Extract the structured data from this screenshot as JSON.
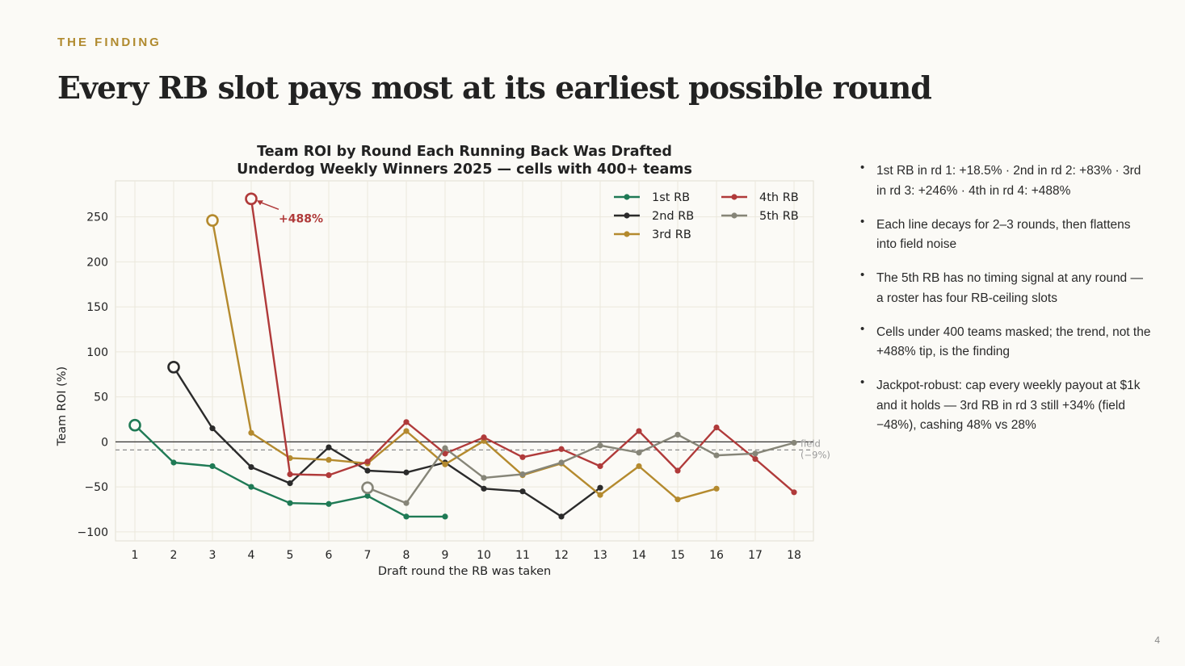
{
  "slide": {
    "eyebrow": "THE FINDING",
    "title": "Every RB slot pays most at its earliest possible round",
    "page_number": "4"
  },
  "notes": [
    "1st RB in rd 1: +18.5% · 2nd in rd 2: +83% · 3rd in rd 3: +246% · 4th in rd 4: +488%",
    "Each line decays for 2–3 rounds, then flattens into field noise",
    "The 5th RB has no timing signal at any round — a roster has four RB-ceiling slots",
    "Cells under 400 teams masked; the trend, not the +488% tip, is the finding",
    "Jackpot-robust: cap every weekly payout at $1k and it holds — 3rd RB in rd 3 still +34% (field −48%), cashing 48% vs 28%"
  ],
  "chart_data": {
    "type": "line",
    "title": "Team ROI by Round Each Running Back Was Drafted",
    "subtitle": "Underdog Weekly Winners 2025 — cells with 400+ teams",
    "xlabel": "Draft round the RB was taken",
    "ylabel": "Team ROI (%)",
    "x_ticks": [
      1,
      2,
      3,
      4,
      5,
      6,
      7,
      8,
      9,
      10,
      11,
      12,
      13,
      14,
      15,
      16,
      17,
      18
    ],
    "y_ticks": [
      250,
      200,
      150,
      100,
      50,
      0,
      -50,
      -100
    ],
    "y_tick_labels": [
      "250",
      "200",
      "150",
      "100",
      "50",
      "0",
      "−50",
      "−100"
    ],
    "xlim": [
      0.5,
      18.5
    ],
    "ylim": [
      -110,
      290
    ],
    "grid": true,
    "legend_position": "top-right",
    "zero_line": 0,
    "field_line": {
      "value": -9,
      "label": "field",
      "sublabel": "(−9%)",
      "color": "#8c8c8c"
    },
    "annotation": {
      "text": "+488%",
      "color": "#b03a3a"
    },
    "series": [
      {
        "name": "1st RB",
        "color": "#1f7a55",
        "x": [
          1,
          2,
          3,
          4,
          5,
          6,
          7,
          8,
          9
        ],
        "y": [
          18.5,
          -23,
          -27,
          -50,
          -68,
          -69,
          -60,
          -83,
          -83
        ]
      },
      {
        "name": "2nd RB",
        "color": "#2b2b2b",
        "x": [
          2,
          3,
          4,
          5,
          6,
          7,
          8,
          9,
          10,
          11,
          12,
          13
        ],
        "y": [
          83,
          15,
          -28,
          -46,
          -6,
          -32,
          -34,
          -23,
          -52,
          -55,
          -83,
          -51
        ]
      },
      {
        "name": "3rd RB",
        "color": "#b48a2e",
        "x": [
          3,
          4,
          5,
          6,
          7,
          8,
          9,
          10,
          11,
          12,
          13,
          14,
          15,
          16
        ],
        "y": [
          246,
          10,
          -18,
          -20,
          -24,
          12,
          -25,
          1,
          -37,
          -24,
          -59,
          -27,
          -64,
          -52
        ]
      },
      {
        "name": "4th RB",
        "color": "#b03a3a",
        "x": [
          4,
          5,
          6,
          7,
          8,
          9,
          10,
          11,
          12,
          13,
          14,
          15,
          16,
          17,
          18
        ],
        "y": [
          270,
          -36,
          -37,
          -22,
          22,
          -13,
          5,
          -17,
          -8,
          -27,
          12,
          -32,
          16,
          -19,
          -56
        ]
      },
      {
        "name": "5th RB",
        "color": "#868578",
        "x": [
          7,
          8,
          9,
          10,
          11,
          12,
          13,
          14,
          15,
          16,
          17,
          18
        ],
        "y": [
          -51,
          -68,
          -7,
          -40,
          -36,
          -23,
          -4,
          -12,
          8,
          -15,
          -13,
          -1
        ]
      }
    ]
  }
}
